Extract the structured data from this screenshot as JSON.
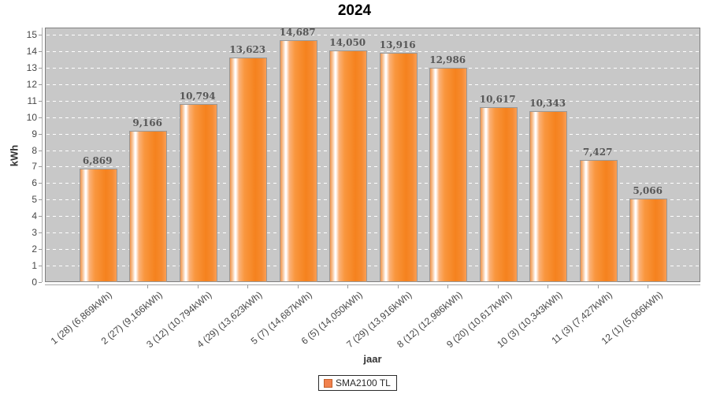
{
  "chart_data": {
    "type": "bar",
    "title": "2024",
    "xlabel": "jaar",
    "ylabel": "kWh",
    "ylim": [
      0,
      15.43
    ],
    "y_ticks": [
      0,
      1,
      2,
      3,
      4,
      5,
      6,
      7,
      8,
      9,
      10,
      11,
      12,
      13,
      14,
      15
    ],
    "grid": "horizontal-dashed-white",
    "categories": [
      "1 (28)  (6,869kWh)",
      "2 (27)  (9,166kWh)",
      "3 (12)  (10,794kWh)",
      "4 (29)  (13,623kWh)",
      "5 (7)  (14,687kWh)",
      "6 (5)  (14,050kWh)",
      "7 (29)  (13,916kWh)",
      "8 (12)  (12,986kWh)",
      "9 (20)  (10,617kWh)",
      "10 (3)  (10,343kWh)",
      "11 (3)  (7,427kWh)",
      "12 (1)  (5,066kWh)"
    ],
    "series": [
      {
        "name": "SMA2100 TL",
        "values": [
          6.869,
          9.166,
          10.794,
          13.623,
          14.687,
          14.05,
          13.916,
          12.986,
          10.617,
          10.343,
          7.427,
          5.066
        ],
        "value_labels": [
          "6,869",
          "9,166",
          "10,794",
          "13,623",
          "14,687",
          "14,050",
          "13,916",
          "12,986",
          "10,617",
          "10,343",
          "7,427",
          "5,066"
        ]
      }
    ],
    "legend": {
      "position": "bottom",
      "entries": [
        {
          "label": "SMA2100 TL",
          "color": "#f1814d"
        }
      ]
    },
    "colors": {
      "bar_main": "#f5821e",
      "bar_highlight": "#ffffff",
      "bar_border": "#989898",
      "plot_background": "#c8c8c8",
      "plot_border": "#7f7f7f",
      "gridline": "#ffffff",
      "tick_label": "#474747",
      "value_label": "#575757",
      "title": "#000000"
    }
  }
}
